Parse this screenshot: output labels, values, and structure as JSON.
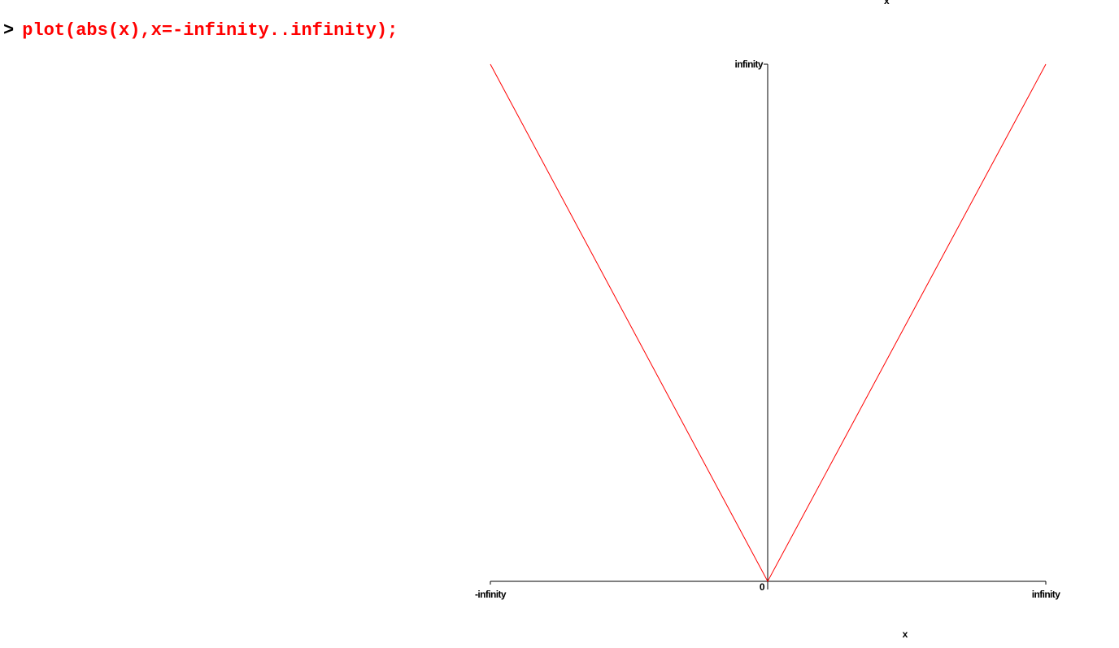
{
  "worksheet": {
    "prompt_symbol": ">",
    "command": "plot(abs(x),x=-infinity..infinity);",
    "command_color": "#ff0000"
  },
  "top_label": "x",
  "chart_data": {
    "type": "line",
    "title": "",
    "xlabel": "x",
    "ylabel": "",
    "x_scale": "infinity",
    "x_ticks": [
      "-infinity",
      "0",
      "infinity"
    ],
    "y_ticks": [
      "0",
      "infinity"
    ],
    "series": [
      {
        "x": [
          "-infinity",
          "0",
          "infinity"
        ],
        "y": [
          "infinity",
          "0",
          "infinity"
        ],
        "color": "#ff0000"
      }
    ],
    "grid": false,
    "axis_color": "#000000"
  }
}
